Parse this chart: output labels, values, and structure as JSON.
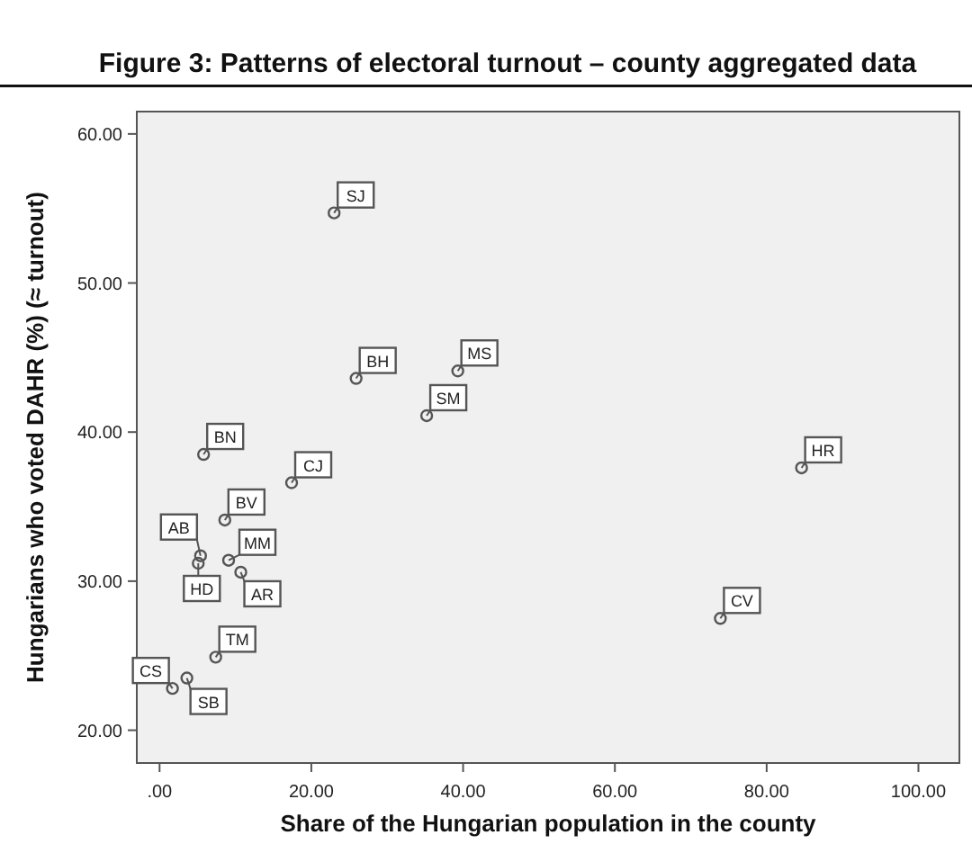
{
  "chart_data": {
    "type": "scatter",
    "title": "Figure 3: Patterns of electoral turnout – county aggregated data",
    "xlabel": "Share of the Hungarian population in the county",
    "ylabel": "Hungarians who voted DAHR (%) (≈ turnout)",
    "x": [
      23.0,
      25.9,
      39.3,
      35.2,
      5.8,
      17.4,
      8.6,
      5.4,
      5.1,
      9.1,
      10.7,
      7.4,
      1.7,
      3.6,
      84.6,
      73.9
    ],
    "values": [
      54.7,
      43.6,
      44.1,
      41.1,
      38.5,
      36.6,
      34.1,
      31.7,
      31.2,
      31.4,
      30.6,
      24.9,
      22.8,
      23.5,
      37.6,
      27.5
    ],
    "color": "#555555",
    "marker": "circle",
    "grid": false,
    "xlim": [
      -3,
      105.4
    ],
    "xticks": [
      {
        "value": 0,
        "label": ".00"
      },
      {
        "value": 20,
        "label": "20.00"
      },
      {
        "value": 40,
        "label": "40.00"
      },
      {
        "value": 60,
        "label": "60.00"
      },
      {
        "value": 80,
        "label": "80.00"
      },
      {
        "value": 100,
        "label": "100.00"
      }
    ],
    "ylim": [
      17.8,
      61.5
    ],
    "yticks": [
      {
        "value": 20,
        "label": "20.00"
      },
      {
        "value": 30,
        "label": "30.00"
      },
      {
        "value": 40,
        "label": "40.00"
      },
      {
        "value": 50,
        "label": "50.00"
      },
      {
        "value": 60,
        "label": "60.00"
      }
    ],
    "annotations": [
      {
        "text": "SJ",
        "x": 23.0,
        "y": 54.7
      },
      {
        "text": "BH",
        "x": 25.9,
        "y": 43.6
      },
      {
        "text": "MS",
        "x": 39.3,
        "y": 44.1
      },
      {
        "text": "SM",
        "x": 35.2,
        "y": 41.1
      },
      {
        "text": "BN",
        "x": 5.8,
        "y": 38.5
      },
      {
        "text": "CJ",
        "x": 17.4,
        "y": 36.6
      },
      {
        "text": "BV",
        "x": 8.6,
        "y": 34.1
      },
      {
        "text": "AB",
        "x": 5.4,
        "y": 31.7
      },
      {
        "text": "HD",
        "x": 5.1,
        "y": 31.2
      },
      {
        "text": "MM",
        "x": 9.1,
        "y": 31.4
      },
      {
        "text": "AR",
        "x": 10.7,
        "y": 30.6
      },
      {
        "text": "TM",
        "x": 7.4,
        "y": 24.9
      },
      {
        "text": "CS",
        "x": 1.7,
        "y": 22.8
      },
      {
        "text": "SB",
        "x": 3.6,
        "y": 23.5
      },
      {
        "text": "HR",
        "x": 84.6,
        "y": 37.6
      },
      {
        "text": "CV",
        "x": 73.9,
        "y": 27.5
      }
    ]
  }
}
